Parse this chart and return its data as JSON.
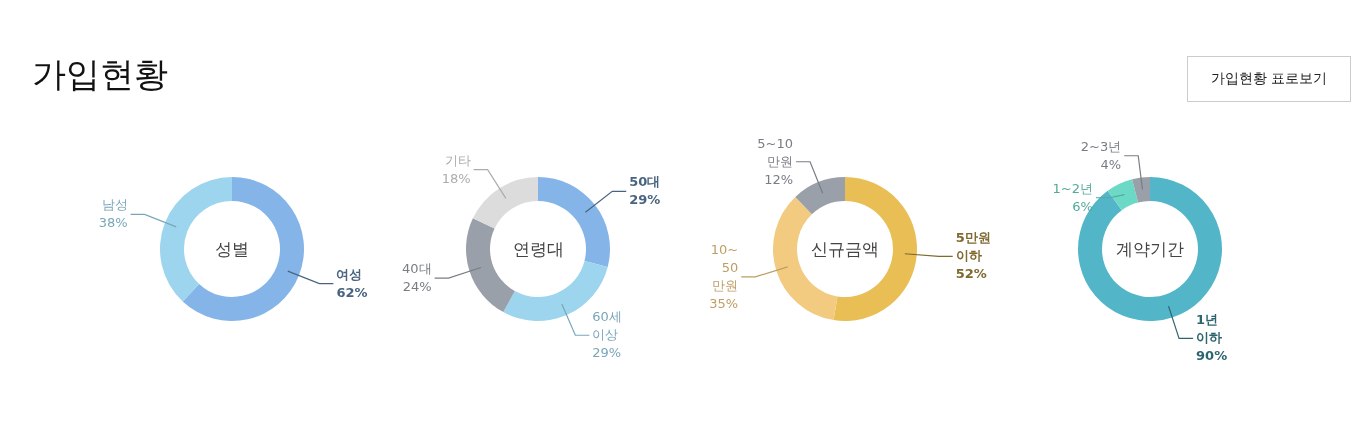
{
  "chart_data": [
    {
      "type": "donut",
      "title": "성별",
      "categories": [
        "여성",
        "남성"
      ],
      "values": [
        62,
        38
      ],
      "colors": [
        "#85b5e8",
        "#9dd5ee"
      ],
      "value_labels": [
        "62%",
        "38%"
      ],
      "annotations": [
        "가입현황",
        "가입현황 표로보기"
      ]
    },
    {
      "type": "donut",
      "title": "연령대",
      "categories": [
        "50대",
        "60세 이상",
        "40대",
        "기타"
      ],
      "values": [
        29,
        29,
        24,
        18
      ],
      "colors": [
        "#85b5e8",
        "#9dd5ee",
        "#9aa0a9",
        "#dcdcdc"
      ],
      "value_labels": [
        "29%",
        "29%",
        "24%",
        "18%"
      ]
    },
    {
      "type": "donut",
      "title": "신규금액",
      "categories": [
        "5만원 이하",
        "10~ 50 만원",
        "5~10 만원"
      ],
      "values": [
        52,
        35,
        12
      ],
      "colors": [
        "#e8be55",
        "#f2cb80",
        "#9aa0a9"
      ],
      "value_labels": [
        "52%",
        "35%",
        "12%"
      ]
    },
    {
      "type": "donut",
      "title": "계약기간",
      "categories": [
        "1년 이하",
        "1~2년",
        "2~3년"
      ],
      "values": [
        90,
        6,
        4
      ],
      "colors": [
        "#52b6c8",
        "#6cd9c6",
        "#9aa0a9"
      ],
      "value_labels": [
        "90%",
        "6%",
        "4%"
      ]
    }
  ]
}
